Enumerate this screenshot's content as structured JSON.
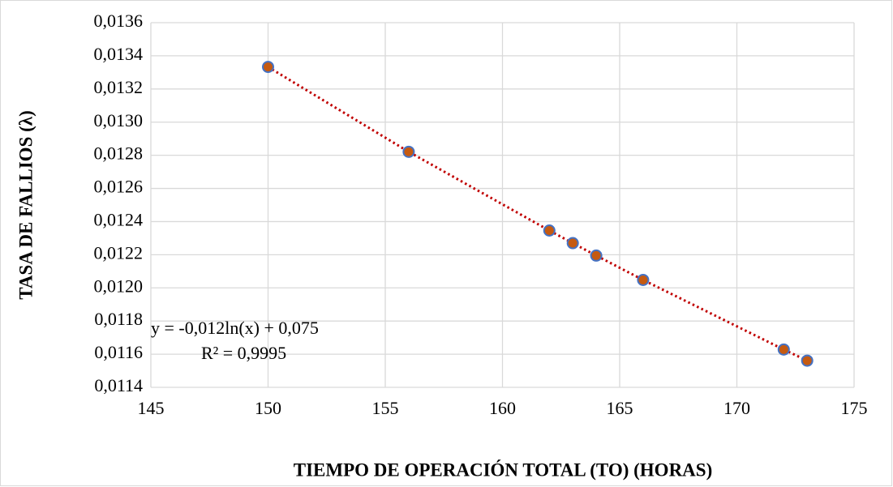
{
  "chart_data": {
    "type": "scatter",
    "x_label": "TIEMPO DE OPERACIÓN TOTAL (TO) (HORAS)",
    "y_label": "TASA DE FALLIOS (λ)",
    "annotations": [
      "y = -0,012ln(x) + 0,075",
      "R² = 0,9995"
    ],
    "series": [
      {
        "color": "#4472c4",
        "trendline_color": "#c00000",
        "x": [
          150,
          156,
          162,
          163,
          164,
          166,
          172,
          173
        ],
        "values": [
          0.013333,
          0.012821,
          0.012346,
          0.01227,
          0.012195,
          0.012048,
          0.011628,
          0.011561
        ]
      }
    ],
    "xlim": [
      145,
      175
    ],
    "xticks": [
      145,
      150,
      155,
      160,
      165,
      170,
      175
    ],
    "ylim": [
      0.0114,
      0.0136
    ],
    "yticks": [
      {
        "value": 0.0114,
        "label": "0,0114"
      },
      {
        "value": 0.0116,
        "label": "0,0116"
      },
      {
        "value": 0.0118,
        "label": "0,0118"
      },
      {
        "value": 0.012,
        "label": "0,0120"
      },
      {
        "value": 0.0122,
        "label": "0,0122"
      },
      {
        "value": 0.0124,
        "label": "0,0124"
      },
      {
        "value": 0.0126,
        "label": "0,0126"
      },
      {
        "value": 0.0128,
        "label": "0,0128"
      },
      {
        "value": 0.013,
        "label": "0,0130"
      },
      {
        "value": 0.0132,
        "label": "0,0132"
      },
      {
        "value": 0.0134,
        "label": "0,0134"
      },
      {
        "value": 0.0136,
        "label": "0,0136"
      }
    ],
    "grid": true
  }
}
